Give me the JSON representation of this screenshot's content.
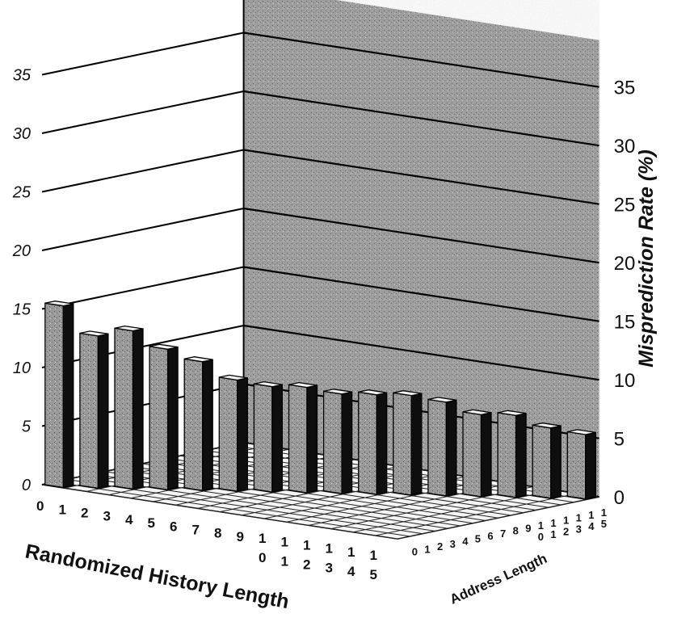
{
  "chart_data": {
    "type": "bar3d",
    "title": "",
    "xlabel": "Randomized History Length",
    "ylabel": "Address Length",
    "zlabel": "Misprediction Rate (%)",
    "x_ticks": [
      "0",
      "1",
      "2",
      "3",
      "4",
      "5",
      "6",
      "7",
      "8",
      "9",
      "10",
      "11",
      "12",
      "13",
      "14",
      "15"
    ],
    "y_ticks": [
      "0",
      "1",
      "2",
      "3",
      "4",
      "5",
      "6",
      "7",
      "8",
      "9",
      "10",
      "11",
      "12",
      "13",
      "14",
      "15"
    ],
    "zlim": [
      0,
      35
    ],
    "z_ticks_left": [
      "0",
      "5",
      "10",
      "15",
      "20",
      "25",
      "30",
      "35"
    ],
    "z_ticks_right": [
      "0",
      "5",
      "10",
      "15",
      "20",
      "25",
      "30",
      "35"
    ],
    "grid": true,
    "visible_bars": [
      {
        "history": 0,
        "address": 0,
        "value": 15.5
      },
      {
        "history": 1,
        "address": 1,
        "value": 13
      },
      {
        "history": 2,
        "address": 2,
        "value": 13.5
      },
      {
        "history": 3,
        "address": 3,
        "value": 12
      },
      {
        "history": 4,
        "address": 4,
        "value": 11
      },
      {
        "history": 5,
        "address": 5,
        "value": 9.5
      },
      {
        "history": 6,
        "address": 6,
        "value": 9
      },
      {
        "history": 7,
        "address": 7,
        "value": 9
      },
      {
        "history": 8,
        "address": 8,
        "value": 8.5
      },
      {
        "history": 9,
        "address": 9,
        "value": 8.5
      },
      {
        "history": 10,
        "address": 10,
        "value": 8.5
      },
      {
        "history": 11,
        "address": 11,
        "value": 8
      },
      {
        "history": 12,
        "address": 12,
        "value": 7
      },
      {
        "history": 13,
        "address": 13,
        "value": 7
      },
      {
        "history": 14,
        "address": 14,
        "value": 6
      },
      {
        "history": 15,
        "address": 15,
        "value": 5.5
      }
    ]
  }
}
